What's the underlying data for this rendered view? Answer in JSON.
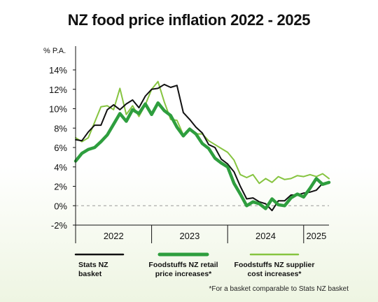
{
  "title": "NZ food price inflation 2022 - 2025",
  "footnote": "*For a basket comparable to Stats NZ basket",
  "colors": {
    "stats": "#111111",
    "retail": "#2e9e3e",
    "supplier": "#86c440",
    "zero_line": "#999999"
  },
  "chart_data": {
    "type": "line",
    "ylabel": "% P.A.",
    "ylim": [
      -2,
      14
    ],
    "yticks": [
      -2,
      0,
      2,
      4,
      6,
      8,
      10,
      12,
      14
    ],
    "ytick_labels": [
      "-2%",
      "0%",
      "2%",
      "4%",
      "6%",
      "8%",
      "10%",
      "12%",
      "14%"
    ],
    "x_start": "2022-01",
    "x_end": "2025-05",
    "year_labels": [
      {
        "label": "2022",
        "center": "2022-07"
      },
      {
        "label": "2023",
        "center": "2023-07"
      },
      {
        "label": "2024",
        "center": "2024-07"
      },
      {
        "label": "2025",
        "center": "2025-03"
      }
    ],
    "year_boundaries": [
      "2023-01",
      "2024-01",
      "2025-01"
    ],
    "months": [
      "2022-01",
      "2022-02",
      "2022-03",
      "2022-04",
      "2022-05",
      "2022-06",
      "2022-07",
      "2022-08",
      "2022-09",
      "2022-10",
      "2022-11",
      "2022-12",
      "2023-01",
      "2023-02",
      "2023-03",
      "2023-04",
      "2023-05",
      "2023-06",
      "2023-07",
      "2023-08",
      "2023-09",
      "2023-10",
      "2023-11",
      "2023-12",
      "2024-01",
      "2024-02",
      "2024-03",
      "2024-04",
      "2024-05",
      "2024-06",
      "2024-07",
      "2024-08",
      "2024-09",
      "2024-10",
      "2024-11",
      "2024-12",
      "2025-01",
      "2025-02",
      "2025-03",
      "2025-04",
      "2025-05"
    ],
    "series": [
      {
        "name": "Stats NZ basket",
        "values": [
          6.8,
          6.7,
          7.6,
          8.3,
          8.3,
          9.9,
          10.4,
          9.9,
          10.5,
          10.9,
          10.1,
          11.3,
          12.0,
          12.1,
          12.5,
          12.2,
          12.4,
          9.6,
          8.9,
          8.1,
          7.5,
          6.3,
          6.0,
          4.8,
          4.3,
          3.5,
          2.0,
          0.7,
          0.8,
          0.4,
          0.2,
          -0.5,
          0.5,
          0.5,
          1.1,
          1.1,
          1.3,
          1.4,
          1.6,
          2.3,
          2.3
        ]
      },
      {
        "name": "Foodstuffs NZ retail price increases*",
        "values": [
          4.6,
          5.4,
          5.8,
          6.0,
          6.6,
          7.3,
          8.4,
          9.5,
          8.7,
          9.9,
          9.5,
          10.5,
          9.4,
          10.6,
          9.8,
          9.3,
          8.1,
          7.2,
          7.9,
          7.4,
          6.4,
          5.9,
          4.9,
          4.4,
          4.0,
          2.3,
          1.2,
          0.0,
          0.4,
          0.2,
          -0.3,
          0.7,
          0.1,
          0.0,
          0.8,
          1.2,
          0.9,
          1.8,
          2.8,
          2.2,
          2.4
        ]
      },
      {
        "name": "Foodstuffs NZ supplier cost increases*",
        "values": [
          7.0,
          6.6,
          7.0,
          8.6,
          10.2,
          10.3,
          9.9,
          12.1,
          9.4,
          10.3,
          9.2,
          10.4,
          12.0,
          12.8,
          10.7,
          8.9,
          8.8,
          7.3,
          8.0,
          7.4,
          7.4,
          6.7,
          6.3,
          5.9,
          5.5,
          4.7,
          3.2,
          2.9,
          3.2,
          2.3,
          2.8,
          2.4,
          3.0,
          2.7,
          2.8,
          3.1,
          3.0,
          3.2,
          3.0,
          3.3,
          2.8
        ]
      }
    ],
    "legend_placement": "bottom"
  },
  "legend": [
    {
      "label": "Stats NZ basket"
    },
    {
      "label": "Foodstuffs NZ retail price increases*"
    },
    {
      "label": "Foodstuffs NZ supplier cost increases*"
    }
  ]
}
